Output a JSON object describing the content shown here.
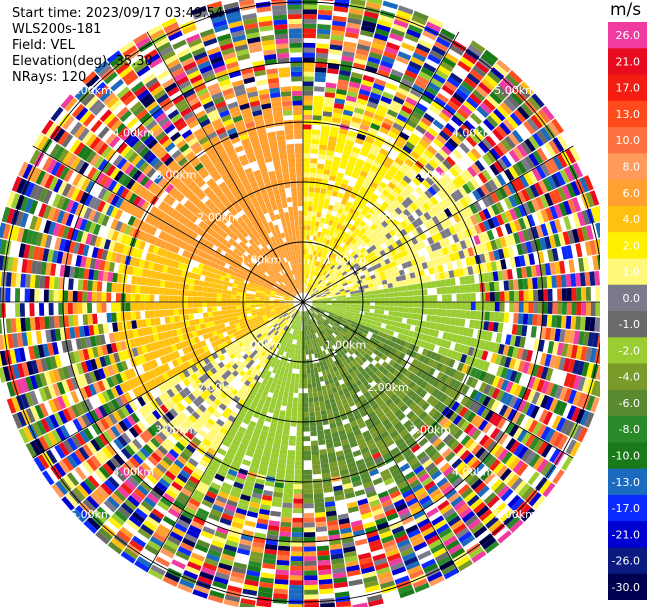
{
  "header": {
    "start_time": "Start time: 2023/09/17 03:49:54",
    "instrument": "WLS200s-181",
    "field": "Field: VEL",
    "elevation": "Elevation(deg): 35.30",
    "nrays": "NRays: 120"
  },
  "colorbar": {
    "unit": "m/s",
    "ticks": [
      "26.0",
      "21.0",
      "17.0",
      "13.0",
      "10.0",
      "8.0",
      "6.0",
      "4.0",
      "2.0",
      "1.0",
      "0.0",
      "-1.0",
      "-2.0",
      "-4.0",
      "-6.0",
      "-8.0",
      "-10.0",
      "-13.0",
      "-17.0",
      "-21.0",
      "-26.0",
      "-30.0"
    ],
    "colors": [
      "#f03ca0",
      "#e80b20",
      "#f21d10",
      "#ff4a1c",
      "#ff7040",
      "#ff9a5a",
      "#ffa030",
      "#ffc010",
      "#fff000",
      "#fff878",
      "#7a7a8a",
      "#6a6a6a",
      "#9acd32",
      "#7a9a2a",
      "#5a8a30",
      "#2a8a2a",
      "#1a7a1a",
      "#1a6ac0",
      "#0a2aff",
      "#0000d0",
      "#0a1a80",
      "#000050"
    ]
  },
  "chart_data": {
    "type": "heatmap",
    "projection": "polar PPI",
    "field": "VEL",
    "unit": "m/s",
    "nrays": 120,
    "elevation_deg": 35.3,
    "range_ring_labels": [
      "1.00km",
      "2.00km",
      "3.00km",
      "4.00km",
      "5.00km"
    ],
    "range_rings_km": [
      1,
      2,
      3,
      4,
      5
    ],
    "max_range_km": 5.2,
    "color_scale": [
      26.0,
      21.0,
      17.0,
      13.0,
      10.0,
      8.0,
      6.0,
      4.0,
      2.0,
      1.0,
      0.0,
      -1.0,
      -2.0,
      -4.0,
      -6.0,
      -8.0,
      -10.0,
      -13.0,
      -17.0,
      -21.0,
      -26.0,
      -30.0
    ],
    "sectors": [
      {
        "azimuth_from": 0,
        "azimuth_to": 40,
        "velocity": 1.5
      },
      {
        "azimuth_from": 40,
        "azimuth_to": 80,
        "velocity": 0.5
      },
      {
        "azimuth_from": 80,
        "azimuth_to": 110,
        "velocity": -3.0
      },
      {
        "azimuth_from": 110,
        "azimuth_to": 180,
        "velocity": -6.0
      },
      {
        "azimuth_from": 180,
        "azimuth_to": 210,
        "velocity": -3.0
      },
      {
        "azimuth_from": 210,
        "azimuth_to": 240,
        "velocity": 0.5
      },
      {
        "azimuth_from": 240,
        "azimuth_to": 290,
        "velocity": 2.5
      },
      {
        "azimuth_from": 290,
        "azimuth_to": 360,
        "velocity": 5.0
      }
    ],
    "valid_range_km": 3.2
  }
}
